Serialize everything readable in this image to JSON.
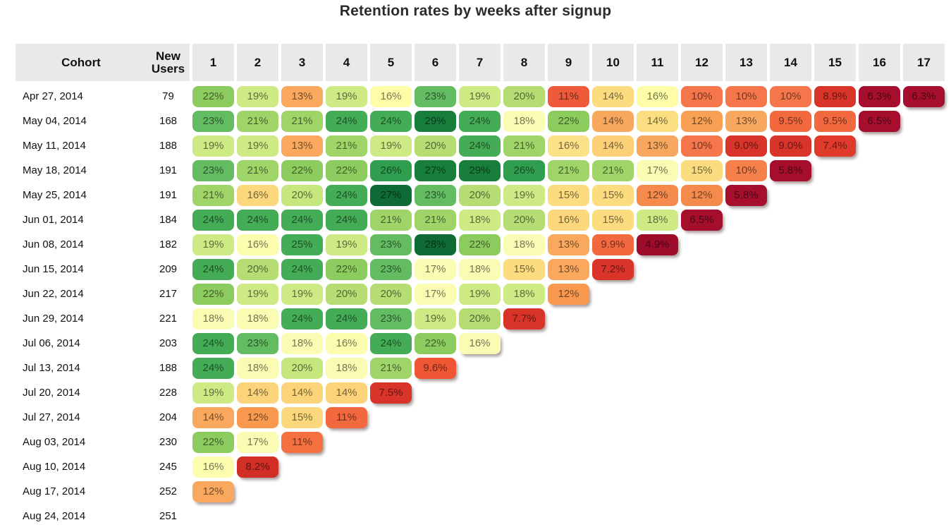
{
  "title": "Retention rates by weeks after signup",
  "colors": {
    "header_bg": "#e9e9e9",
    "cell_text": "rgba(0,0,0,0.55)",
    "scale_low": "#9d0c2a",
    "scale_mid": "#fdfdb0",
    "scale_high": "#0e6b35"
  },
  "chart_data": {
    "type": "heatmap",
    "title": "Retention rates by weeks after signup",
    "columns": [
      "Cohort",
      "New Users",
      "1",
      "2",
      "3",
      "4",
      "5",
      "6",
      "7",
      "8",
      "9",
      "10",
      "11",
      "12",
      "13",
      "14",
      "15",
      "16",
      "17"
    ],
    "rows": [
      {
        "cohort": "Apr 27, 2014",
        "new_users": "79",
        "values": [
          "22%",
          "19%",
          "13%",
          "19%",
          "16%",
          "23%",
          "19%",
          "20%",
          "11%",
          "14%",
          "16%",
          "10%",
          "10%",
          "10%",
          "8.9%",
          "6.3%",
          "6.3%"
        ],
        "colors": [
          "#8ccc5e",
          "#cdea85",
          "#f9a85e",
          "#cdea85",
          "#fdfda7",
          "#63bc62",
          "#cdea85",
          "#b5dd74",
          "#ee5a3a",
          "#fbdc7f",
          "#fdfda7",
          "#f5764a",
          "#f5764a",
          "#f5764a",
          "#d93429",
          "#a50f2d",
          "#a50f2d"
        ]
      },
      {
        "cohort": "May 04, 2014",
        "new_users": "168",
        "values": [
          "23%",
          "21%",
          "21%",
          "24%",
          "24%",
          "29%",
          "24%",
          "18%",
          "22%",
          "14%",
          "14%",
          "12%",
          "13%",
          "9.5%",
          "9.5%",
          "6.5%"
        ],
        "colors": [
          "#63bc62",
          "#9fd468",
          "#9fd468",
          "#44ac56",
          "#44ac56",
          "#177e3c",
          "#44ac56",
          "#fbfcb4",
          "#8ccc5e",
          "#f8a85e",
          "#fbdd82",
          "#f8a155",
          "#f8a85e",
          "#f2683f",
          "#f2683f",
          "#a50f2d"
        ]
      },
      {
        "cohort": "May 11, 2014",
        "new_users": "188",
        "values": [
          "19%",
          "19%",
          "13%",
          "21%",
          "19%",
          "20%",
          "24%",
          "21%",
          "16%",
          "14%",
          "13%",
          "10%",
          "9.0%",
          "9.0%",
          "7.4%"
        ],
        "colors": [
          "#cdea85",
          "#cdea85",
          "#f9a85e",
          "#9fd468",
          "#cdea85",
          "#b5dd74",
          "#44ac56",
          "#9fd468",
          "#fbe289",
          "#fbd076",
          "#f8a85e",
          "#f5764a",
          "#d93429",
          "#d93429",
          "#e03a2a"
        ]
      },
      {
        "cohort": "May 18, 2014",
        "new_users": "191",
        "values": [
          "23%",
          "21%",
          "22%",
          "22%",
          "26%",
          "27%",
          "29%",
          "26%",
          "21%",
          "21%",
          "17%",
          "15%",
          "10%",
          "5.8%"
        ],
        "colors": [
          "#63bc62",
          "#9fd468",
          "#8ccc5e",
          "#8ccc5e",
          "#2f9e4e",
          "#177e3c",
          "#177e3c",
          "#2f9e4e",
          "#9fd468",
          "#9fd468",
          "#fbfcb4",
          "#fbdc7f",
          "#f58049",
          "#a50f2d"
        ]
      },
      {
        "cohort": "May 25, 2014",
        "new_users": "191",
        "values": [
          "21%",
          "16%",
          "20%",
          "24%",
          "27%",
          "23%",
          "20%",
          "19%",
          "15%",
          "15%",
          "12%",
          "12%",
          "5.8%"
        ],
        "colors": [
          "#9fd468",
          "#fbd87b",
          "#c6e67e",
          "#44ac56",
          "#0e6b35",
          "#63bc62",
          "#b5dd74",
          "#cdea85",
          "#fbdc7f",
          "#fbdc7f",
          "#f58a4d",
          "#f58a4d",
          "#a50f2d"
        ]
      },
      {
        "cohort": "Jun 01, 2014",
        "new_users": "184",
        "values": [
          "24%",
          "24%",
          "24%",
          "24%",
          "21%",
          "21%",
          "18%",
          "20%",
          "16%",
          "15%",
          "18%",
          "6.5%"
        ],
        "colors": [
          "#44ac56",
          "#44ac56",
          "#44ac56",
          "#44ac56",
          "#9fd468",
          "#9fd468",
          "#cdea85",
          "#b5dd74",
          "#fbd87b",
          "#fbdc7f",
          "#cdea85",
          "#a50f2d"
        ]
      },
      {
        "cohort": "Jun 08, 2014",
        "new_users": "182",
        "values": [
          "19%",
          "16%",
          "25%",
          "19%",
          "23%",
          "28%",
          "22%",
          "18%",
          "13%",
          "9.9%",
          "4.9%"
        ],
        "colors": [
          "#cdea85",
          "#fdfdb0",
          "#44ac56",
          "#cdea85",
          "#63bc62",
          "#0e6b35",
          "#8ccc5e",
          "#fbfcb4",
          "#f9a85e",
          "#f2683f",
          "#9d0c2a"
        ]
      },
      {
        "cohort": "Jun 15, 2014",
        "new_users": "209",
        "values": [
          "24%",
          "20%",
          "24%",
          "22%",
          "23%",
          "17%",
          "18%",
          "15%",
          "13%",
          "7.2%"
        ],
        "colors": [
          "#44ac56",
          "#b5dd74",
          "#44ac56",
          "#8ccc5e",
          "#63bc62",
          "#fbfcb4",
          "#fbfcb4",
          "#fbdc7f",
          "#f9a85e",
          "#d93429"
        ]
      },
      {
        "cohort": "Jun 22, 2014",
        "new_users": "217",
        "values": [
          "22%",
          "19%",
          "19%",
          "20%",
          "20%",
          "17%",
          "19%",
          "18%",
          "12%"
        ],
        "colors": [
          "#8ccc5e",
          "#cdea85",
          "#cdea85",
          "#b5dd74",
          "#b5dd74",
          "#fbfcb4",
          "#cdea85",
          "#cdea85",
          "#f8994f"
        ]
      },
      {
        "cohort": "Jun 29, 2014",
        "new_users": "221",
        "values": [
          "18%",
          "18%",
          "24%",
          "24%",
          "23%",
          "19%",
          "20%",
          "7.7%"
        ],
        "colors": [
          "#fbfcb4",
          "#fbfcb4",
          "#44ac56",
          "#44ac56",
          "#63bc62",
          "#cdea85",
          "#b5dd74",
          "#d93429"
        ]
      },
      {
        "cohort": "Jul 06, 2014",
        "new_users": "203",
        "values": [
          "24%",
          "23%",
          "18%",
          "16%",
          "24%",
          "22%",
          "16%"
        ],
        "colors": [
          "#44ac56",
          "#63bc62",
          "#fbfcb4",
          "#fdfdb0",
          "#44ac56",
          "#8ccc5e",
          "#fbfcb4"
        ]
      },
      {
        "cohort": "Jul 13, 2014",
        "new_users": "188",
        "values": [
          "24%",
          "18%",
          "20%",
          "18%",
          "21%",
          "9.6%"
        ],
        "colors": [
          "#44ac56",
          "#fbfcb4",
          "#c6e67e",
          "#fbfcb4",
          "#9fd468",
          "#ef5634"
        ]
      },
      {
        "cohort": "Jul 20, 2014",
        "new_users": "228",
        "values": [
          "19%",
          "14%",
          "14%",
          "14%",
          "7.5%"
        ],
        "colors": [
          "#cdea85",
          "#fbd479",
          "#fbd479",
          "#fbd479",
          "#d93429"
        ]
      },
      {
        "cohort": "Jul 27, 2014",
        "new_users": "204",
        "values": [
          "14%",
          "12%",
          "15%",
          "11%"
        ],
        "colors": [
          "#f9a85e",
          "#f8994f",
          "#fbd87b",
          "#f2683f"
        ]
      },
      {
        "cohort": "Aug 03, 2014",
        "new_users": "230",
        "values": [
          "22%",
          "17%",
          "11%"
        ],
        "colors": [
          "#8ccc5e",
          "#fbfcb4",
          "#f4703f"
        ]
      },
      {
        "cohort": "Aug 10, 2014",
        "new_users": "245",
        "values": [
          "16%",
          "8.2%"
        ],
        "colors": [
          "#fdfdb0",
          "#d12e26"
        ]
      },
      {
        "cohort": "Aug 17, 2014",
        "new_users": "252",
        "values": [
          "12%"
        ],
        "colors": [
          "#f9a85e"
        ]
      },
      {
        "cohort": "Aug 24, 2014",
        "new_users": "251",
        "values": [],
        "colors": []
      }
    ]
  }
}
